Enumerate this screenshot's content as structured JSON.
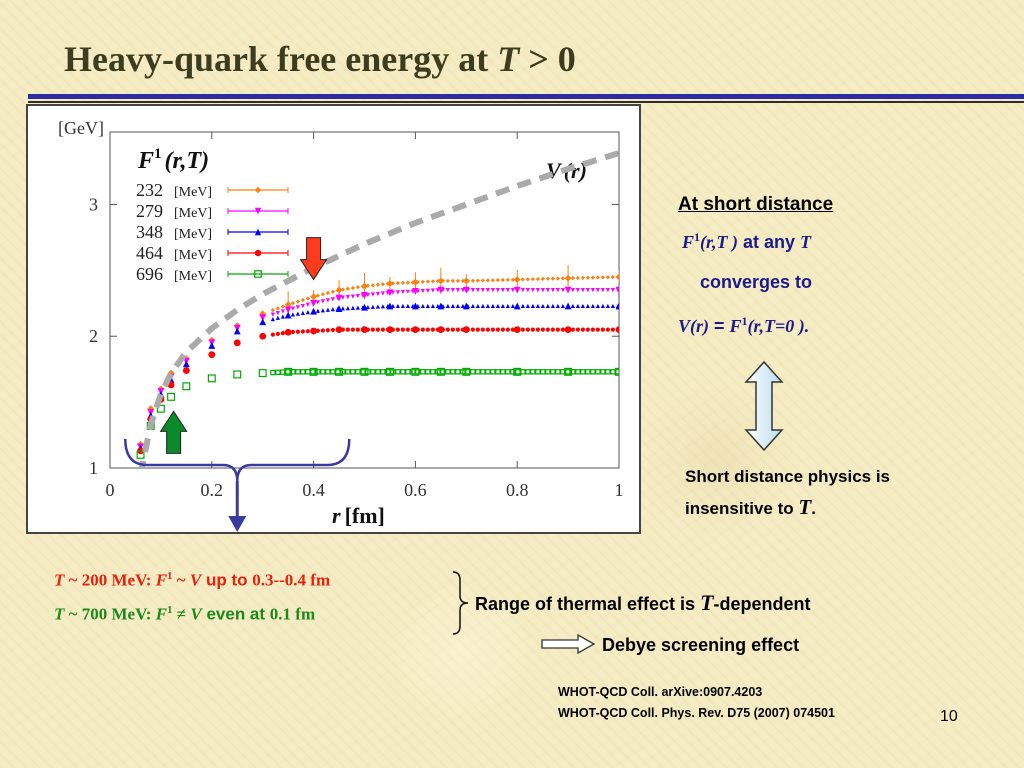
{
  "slide": {
    "title_main": "Heavy-quark free energy at ",
    "title_T": "T",
    "title_tail": " > 0",
    "page_number": "10"
  },
  "chart_data": {
    "type": "scatter",
    "y_unit": "[GeV]",
    "xlabel_var": "r",
    "xlabel_unit": "[fm]",
    "xlim": [
      0,
      1
    ],
    "ylim": [
      1,
      3.55
    ],
    "x_ticks": [
      "0",
      "0.2",
      "0.4",
      "0.6",
      "0.8",
      "1"
    ],
    "y_ticks": [
      "1",
      "2",
      "3"
    ],
    "x_tick_values": [
      0,
      0.2,
      0.4,
      0.6,
      0.8,
      1
    ],
    "y_tick_values": [
      1,
      2,
      3
    ],
    "grid": false,
    "legend_position": "top-left",
    "legend_title": {
      "F": "F",
      "sup": "1",
      "args": "(r,T)"
    },
    "series": [
      {
        "name": "232",
        "unit": "[MeV]",
        "color": "#ff7f0e",
        "marker": "diamond",
        "plateau": 2.42,
        "x": [
          0.06,
          0.08,
          0.1,
          0.12,
          0.15,
          0.2,
          0.25,
          0.3,
          0.35,
          0.4,
          0.45,
          0.5,
          0.55,
          0.6,
          0.65,
          0.7,
          0.8,
          0.9,
          1.0
        ],
        "y": [
          1.18,
          1.45,
          1.6,
          1.72,
          1.83,
          1.97,
          2.08,
          2.17,
          2.24,
          2.3,
          2.35,
          2.38,
          2.4,
          2.41,
          2.42,
          2.42,
          2.43,
          2.44,
          2.45
        ]
      },
      {
        "name": "279",
        "unit": "[MeV]",
        "color": "#ff00ff",
        "marker": "triangle-down",
        "plateau": 2.35,
        "x": [
          0.06,
          0.08,
          0.1,
          0.12,
          0.15,
          0.2,
          0.25,
          0.3,
          0.35,
          0.4,
          0.45,
          0.5,
          0.55,
          0.6,
          0.65,
          0.7,
          0.8,
          0.9,
          1.0
        ],
        "y": [
          1.16,
          1.42,
          1.58,
          1.69,
          1.81,
          1.95,
          2.06,
          2.14,
          2.2,
          2.25,
          2.29,
          2.31,
          2.33,
          2.34,
          2.35,
          2.35,
          2.35,
          2.35,
          2.35
        ]
      },
      {
        "name": "348",
        "unit": "[MeV]",
        "color": "#0000ff",
        "marker": "triangle",
        "plateau": 2.23,
        "x": [
          0.06,
          0.08,
          0.1,
          0.12,
          0.15,
          0.2,
          0.25,
          0.3,
          0.35,
          0.4,
          0.45,
          0.5,
          0.55,
          0.6,
          0.65,
          0.7,
          0.8,
          0.9,
          1.0
        ],
        "y": [
          1.15,
          1.4,
          1.56,
          1.67,
          1.79,
          1.93,
          2.04,
          2.11,
          2.16,
          2.19,
          2.21,
          2.22,
          2.23,
          2.23,
          2.23,
          2.23,
          2.23,
          2.23,
          2.23
        ]
      },
      {
        "name": "464",
        "unit": "[MeV]",
        "color": "#ff0000",
        "marker": "circle",
        "plateau": 2.05,
        "x": [
          0.06,
          0.08,
          0.1,
          0.12,
          0.15,
          0.2,
          0.25,
          0.3,
          0.35,
          0.4,
          0.45,
          0.5,
          0.55,
          0.6,
          0.65,
          0.7,
          0.8,
          0.9,
          1.0
        ],
        "y": [
          1.13,
          1.37,
          1.52,
          1.63,
          1.74,
          1.86,
          1.95,
          2.0,
          2.03,
          2.04,
          2.05,
          2.05,
          2.05,
          2.05,
          2.05,
          2.05,
          2.05,
          2.05,
          2.05
        ]
      },
      {
        "name": "696",
        "unit": "[MeV]",
        "color": "#00aa00",
        "marker": "square",
        "plateau": 1.73,
        "x": [
          0.06,
          0.08,
          0.1,
          0.12,
          0.15,
          0.2,
          0.25,
          0.3,
          0.35,
          0.4,
          0.45,
          0.5,
          0.55,
          0.6,
          0.65,
          0.7,
          0.8,
          0.9,
          1.0
        ],
        "y": [
          1.1,
          1.32,
          1.45,
          1.54,
          1.62,
          1.68,
          1.71,
          1.72,
          1.73,
          1.73,
          1.73,
          1.73,
          1.73,
          1.73,
          1.73,
          1.73,
          1.73,
          1.73,
          1.73
        ]
      }
    ],
    "potential": {
      "label_V": "V",
      "label_r": "(r)",
      "style": "dashed",
      "color": "#aaaaaa",
      "x": [
        0.06,
        0.08,
        0.1,
        0.12,
        0.15,
        0.2,
        0.25,
        0.3,
        0.4,
        0.5,
        0.6,
        0.7,
        0.8,
        0.9,
        1.0
      ],
      "y": [
        0.95,
        1.33,
        1.56,
        1.72,
        1.88,
        2.06,
        2.2,
        2.32,
        2.52,
        2.7,
        2.86,
        3.0,
        3.14,
        3.27,
        3.39
      ]
    },
    "annotation_arrows": [
      {
        "name": "red-arrow",
        "color": "#ff3b1e",
        "x": 0.4,
        "y_tip": 2.43,
        "direction": "down"
      },
      {
        "name": "green-arrow",
        "color": "#0a8a2a",
        "x": 0.125,
        "y_tip": 1.43,
        "direction": "up"
      }
    ],
    "bracket": {
      "x_start": 0.03,
      "x_end": 0.47,
      "color": "#3a3aa0"
    }
  },
  "notes": {
    "short_heading": "At short distance",
    "line1_F": "F",
    "line1_sup": "1",
    "line1_args": "(r,T )",
    "line1_text": " at any ",
    "line1_T": "T",
    "line2": "converges to",
    "line3_V": "V",
    "line3_r": "(r)",
    "line3_eq": " = ",
    "line3_F": "F",
    "line3_sup": "1",
    "line3_args": "(r,T=0 ).",
    "insensitive_line1": "Short distance physics is",
    "insensitive_line2_prefix": "insensitive to ",
    "insensitive_T": "T",
    "insensitive_suffix": "."
  },
  "comparisons": {
    "row1_T": "T",
    "row1_tilde": " ~ 200 MeV: ",
    "row1_F": "F",
    "row1_sup": "1",
    "row1_sim": " ~ ",
    "row1_V": "V",
    "row1_text": " up to ",
    "row1_range": "0.3--0.4 fm",
    "row2_T": "T",
    "row2_tilde": " ~ 700 MeV: ",
    "row2_F": "F",
    "row2_sup": "1",
    "row2_neq": " ≠ ",
    "row2_V": "V",
    "row2_text": " even at ",
    "row2_range": "0.1 fm",
    "range_prefix": "Range of thermal effect is ",
    "range_T": "T",
    "range_suffix": "-dependent",
    "debye": "Debye screening effect"
  },
  "references": {
    "ref1": "WHOT-QCD Coll. arXive:0907.4203",
    "ref2": "WHOT-QCD Coll. Phys. Rev. D75 (2007) 074501"
  }
}
